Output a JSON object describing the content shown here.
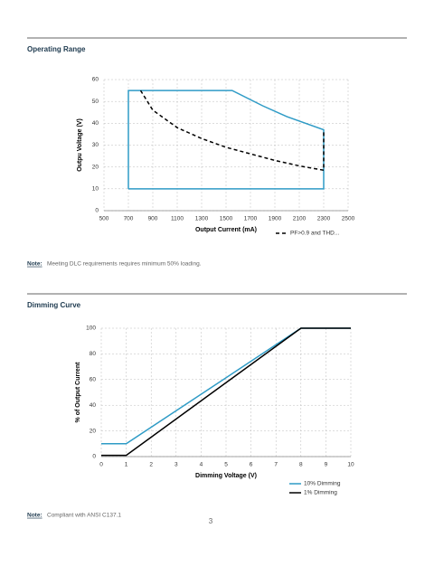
{
  "sections": [
    {
      "heading": "Operating Range",
      "note_label": "Note:",
      "note": "Meeting DLC requirements requires minimum 50% loading."
    },
    {
      "heading": "Dimming Curve",
      "note_label": "Note:",
      "note": "Compliant with ANSI C137.1"
    }
  ],
  "page_number": "3",
  "chart_data": [
    {
      "type": "line",
      "xlabel": "Output Current (mA)",
      "ylabel": "Outpu Voltage (V)",
      "xlim": [
        500,
        2500
      ],
      "xticks": [
        500,
        700,
        900,
        1100,
        1300,
        1500,
        1700,
        1900,
        2100,
        2300,
        2500
      ],
      "ylim": [
        0,
        60
      ],
      "yticks": [
        0,
        10,
        20,
        30,
        40,
        50,
        60
      ],
      "grid": true,
      "series": [
        {
          "color": "#2e9bc6",
          "line_style": "solid",
          "x": [
            700,
            700,
            1550,
            1800,
            2000,
            2300,
            2300,
            700
          ],
          "values": [
            10,
            55,
            55,
            48,
            43,
            37,
            10,
            10
          ]
        },
        {
          "name": "PF>0.9 and THD...",
          "color": "#000000",
          "line_style": "dashed",
          "x": [
            800,
            900,
            1100,
            1300,
            1500,
            1700,
            1900,
            2100,
            2300,
            2300
          ],
          "values": [
            55,
            46,
            38,
            33,
            29,
            26,
            23,
            20.5,
            18.5,
            37
          ]
        }
      ]
    },
    {
      "type": "line",
      "xlabel": "Dimming Voltage (V)",
      "ylabel": "% of Output Current",
      "xlim": [
        0,
        10
      ],
      "xticks": [
        0,
        1,
        2,
        3,
        4,
        5,
        6,
        7,
        8,
        9,
        10
      ],
      "ylim": [
        0,
        100
      ],
      "yticks": [
        0,
        20,
        40,
        60,
        80,
        100
      ],
      "grid": true,
      "series": [
        {
          "name": "10% Dimming",
          "color": "#2e9bc6",
          "line_style": "solid",
          "x": [
            0,
            1,
            8,
            10
          ],
          "values": [
            10,
            10,
            100,
            100
          ]
        },
        {
          "name": "1% Dimming",
          "color": "#000000",
          "line_style": "solid",
          "x": [
            0,
            1,
            8,
            10
          ],
          "values": [
            1,
            1,
            100,
            100
          ]
        }
      ]
    }
  ]
}
